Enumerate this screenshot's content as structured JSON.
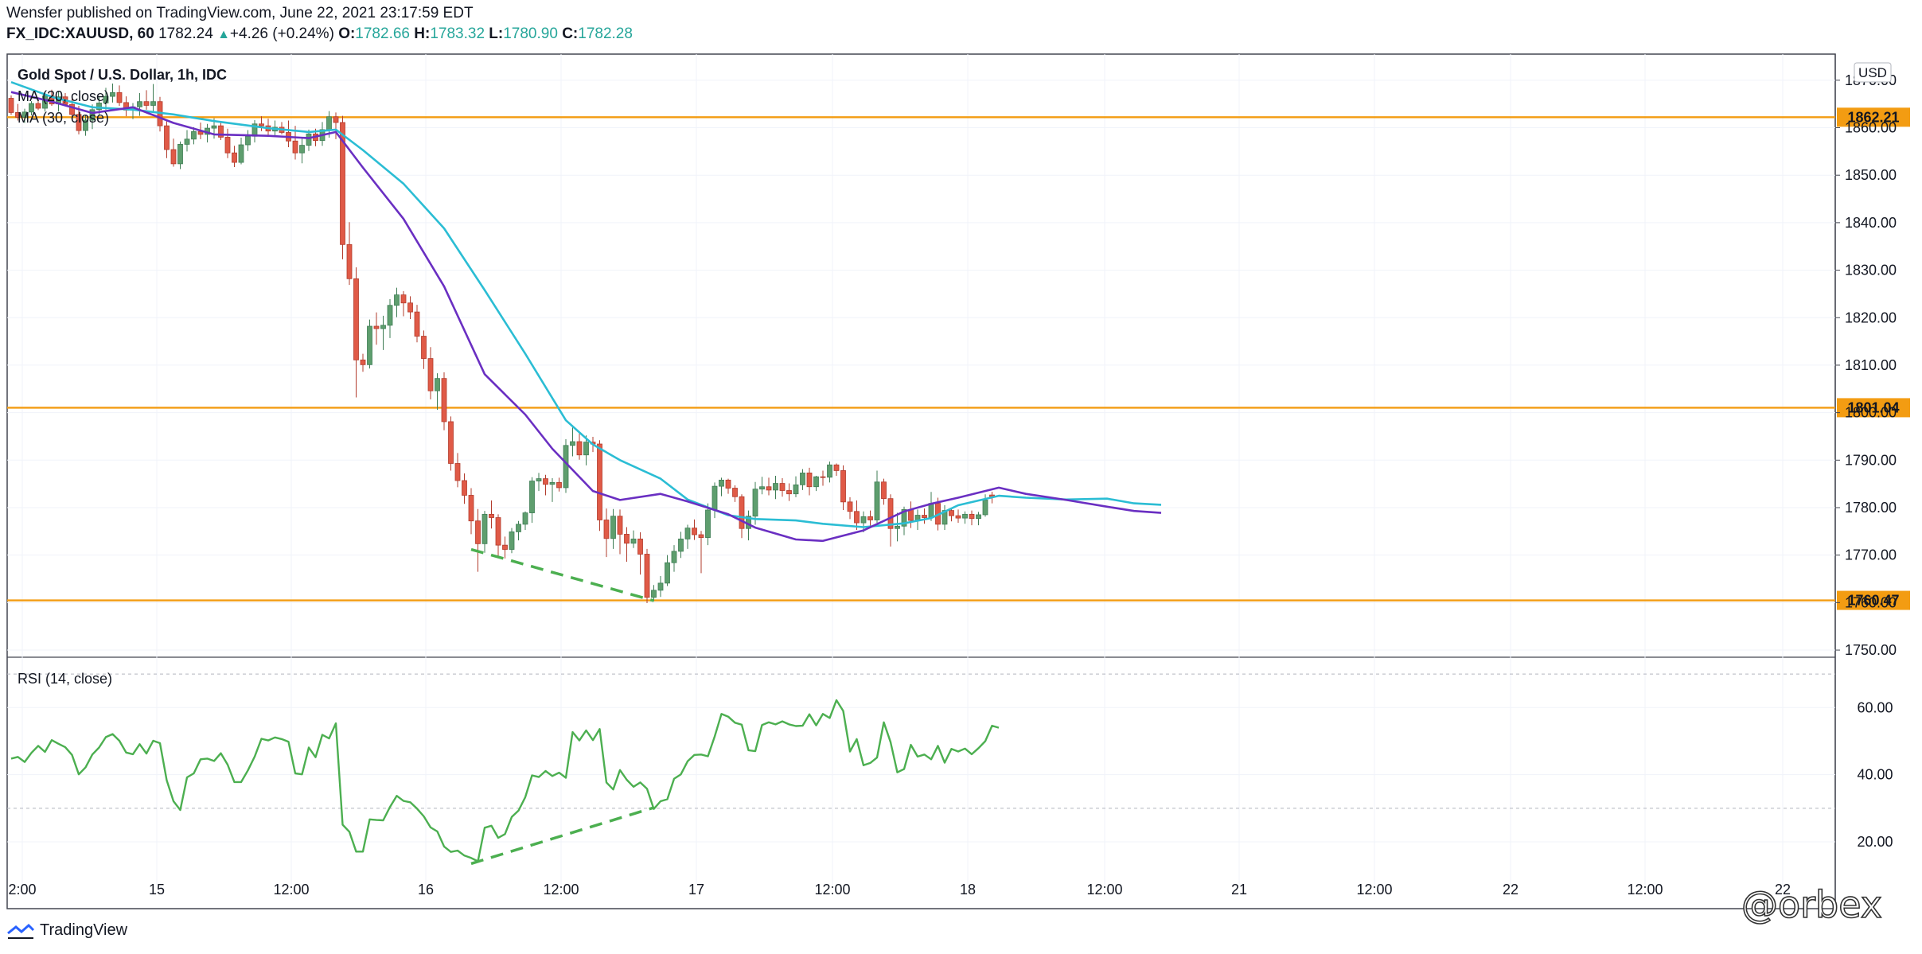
{
  "header": {
    "line1": "Wensfer published on TradingView.com, June 22, 2021 23:17:59 EDT",
    "symbol": "FX_IDC:XAUUSD, 60",
    "last": "1782.24",
    "change": "+4.26 (+0.24%)",
    "o_label": "O:",
    "o": "1782.66",
    "h_label": "H:",
    "h": "1783.32",
    "l_label": "L:",
    "l": "1780.90",
    "c_label": "C:",
    "c": "1782.28"
  },
  "legend": {
    "title": "Gold Spot / U.S. Dollar, 1h, IDC",
    "ma20": "MA (20, close)",
    "ma30": "MA (30, close)",
    "rsi": "RSI (14, close)"
  },
  "currency": "USD",
  "footer": {
    "brand": "TradingView"
  },
  "watermark": "@orbex",
  "colors": {
    "up": "#26a69a",
    "up_fill": "#5e9e6e",
    "down": "#e05a47",
    "ma20": "#6a2fc2",
    "ma30": "#2bbdd4",
    "level": "#f39c12",
    "rsi": "#4caf50",
    "divergence": "#4caf50",
    "grid": "#f0f3fa"
  },
  "chart_data": {
    "type": "candlestick",
    "price_ticks": [
      "1870.00",
      "1860.00",
      "1850.00",
      "1840.00",
      "1830.00",
      "1820.00",
      "1810.00",
      "1800.00",
      "1790.00",
      "1780.00",
      "1770.00",
      "1760.00",
      "1750.00"
    ],
    "price_range": [
      1748.5,
      1875.5
    ],
    "x_labels": [
      "2:00",
      "15",
      "12:00",
      "16",
      "12:00",
      "17",
      "12:00",
      "18",
      "12:00",
      "21",
      "12:00",
      "22",
      "12:00",
      "22"
    ],
    "levels": [
      "1862.21",
      "1801.04",
      "1760.47"
    ],
    "rsi_ticks": [
      "60.00",
      "40.00",
      "20.00"
    ],
    "rsi_range": [
      11,
      75
    ],
    "rsi_bands": [
      70,
      30
    ],
    "candles": [
      [
        1866.2,
        1866.8,
        1862.7,
        1863.2
      ],
      [
        1863.2,
        1865,
        1861.5,
        1862.2
      ],
      [
        1862.2,
        1864,
        1861,
        1863.3
      ],
      [
        1863.3,
        1865.6,
        1862.6,
        1865.1
      ],
      [
        1865.1,
        1866.4,
        1863.7,
        1864.1
      ],
      [
        1864.1,
        1867.6,
        1863.4,
        1866.7
      ],
      [
        1866.7,
        1868,
        1864.6,
        1865
      ],
      [
        1865,
        1867.7,
        1863.4,
        1866.5
      ],
      [
        1866.5,
        1867.3,
        1864.6,
        1864.9
      ],
      [
        1864.9,
        1866.2,
        1862.2,
        1862.8
      ],
      [
        1862.8,
        1864.6,
        1858.6,
        1859.4
      ],
      [
        1859.4,
        1862.7,
        1858.3,
        1861.6
      ],
      [
        1861.6,
        1864.9,
        1859.7,
        1863.8
      ],
      [
        1863.8,
        1866.4,
        1862.5,
        1865.2
      ],
      [
        1865.2,
        1868.4,
        1863.8,
        1866.6
      ],
      [
        1866.6,
        1869.3,
        1865.3,
        1867.4
      ],
      [
        1867.4,
        1868.9,
        1864.6,
        1865.3
      ],
      [
        1865.3,
        1866.6,
        1862.4,
        1863.7
      ],
      [
        1863.7,
        1865.2,
        1861.8,
        1864.4
      ],
      [
        1864.4,
        1867.3,
        1862.5,
        1865.5
      ],
      [
        1865.5,
        1867.9,
        1863.8,
        1864.7
      ],
      [
        1864.7,
        1869.2,
        1863.5,
        1865.5
      ],
      [
        1865.5,
        1866.5,
        1859.2,
        1860.4
      ],
      [
        1860.4,
        1861.6,
        1853.6,
        1855.4
      ],
      [
        1855.4,
        1857.7,
        1851.8,
        1852.4
      ],
      [
        1852.4,
        1857.1,
        1851.3,
        1856.5
      ],
      [
        1856.5,
        1859.5,
        1855,
        1857.6
      ],
      [
        1857.6,
        1860.1,
        1856.5,
        1859.2
      ],
      [
        1859.2,
        1861.1,
        1857.6,
        1858.6
      ],
      [
        1858.6,
        1860.8,
        1856.9,
        1859.9
      ],
      [
        1859.9,
        1862,
        1857.7,
        1860.4
      ],
      [
        1860.4,
        1861.3,
        1857.4,
        1858
      ],
      [
        1858,
        1859.8,
        1853.6,
        1854.7
      ],
      [
        1854.7,
        1856.2,
        1851.7,
        1852.7
      ],
      [
        1852.7,
        1857.9,
        1852.3,
        1856.4
      ],
      [
        1856.4,
        1859.5,
        1855.1,
        1858.2
      ],
      [
        1858.2,
        1861.6,
        1856.9,
        1860.8
      ],
      [
        1860.8,
        1862.4,
        1859.3,
        1860.4
      ],
      [
        1860.4,
        1861.9,
        1858.5,
        1859.3
      ],
      [
        1859.3,
        1861.5,
        1858.2,
        1860.1
      ],
      [
        1860.1,
        1861.2,
        1858.6,
        1859
      ],
      [
        1859,
        1861.5,
        1855.9,
        1857.2
      ],
      [
        1857.2,
        1860.4,
        1853.3,
        1854.7
      ],
      [
        1854.7,
        1857.8,
        1852.5,
        1856.3
      ],
      [
        1856.3,
        1859.6,
        1855.1,
        1858.7
      ],
      [
        1858.7,
        1859.8,
        1856.1,
        1857.3
      ],
      [
        1857.3,
        1861.2,
        1856.2,
        1859.6
      ],
      [
        1859.6,
        1863.5,
        1857.9,
        1862.3
      ],
      [
        1862.3,
        1863.2,
        1857.6,
        1861.1
      ],
      [
        1861.1,
        1862.5,
        1832.3,
        1835.4
      ],
      [
        1835.4,
        1840.1,
        1826.9,
        1828.2
      ],
      [
        1828.2,
        1830.6,
        1803.2,
        1811.1
      ],
      [
        1811.1,
        1812.4,
        1808.6,
        1810.1
      ],
      [
        1810.1,
        1819.6,
        1809.3,
        1818.2
      ],
      [
        1818.2,
        1821.1,
        1814.3,
        1817.7
      ],
      [
        1817.7,
        1820.4,
        1813.2,
        1818.4
      ],
      [
        1818.4,
        1823.9,
        1815.7,
        1822.6
      ],
      [
        1822.6,
        1826.3,
        1820.1,
        1824.8
      ],
      [
        1824.8,
        1825.6,
        1820.3,
        1823.1
      ],
      [
        1823.1,
        1824.5,
        1819.7,
        1821.2
      ],
      [
        1821.2,
        1822.7,
        1814.8,
        1816.1
      ],
      [
        1816.1,
        1817.3,
        1809.2,
        1811.4
      ],
      [
        1811.4,
        1813.8,
        1802.8,
        1804.6
      ],
      [
        1804.6,
        1808.3,
        1800.6,
        1807.2
      ],
      [
        1807.2,
        1808.5,
        1796.3,
        1798.1
      ],
      [
        1798.1,
        1799.2,
        1787.8,
        1789.3
      ],
      [
        1789.3,
        1791.5,
        1784.3,
        1785.7
      ],
      [
        1785.7,
        1787.2,
        1780.8,
        1782.6
      ],
      [
        1782.6,
        1784.1,
        1774.4,
        1777.2
      ],
      [
        1777.2,
        1779.7,
        1766.5,
        1772.4
      ],
      [
        1772.4,
        1779.3,
        1770.5,
        1778.6
      ],
      [
        1778.6,
        1781.5,
        1775.6,
        1777.9
      ],
      [
        1777.9,
        1778.6,
        1769.8,
        1772.1
      ],
      [
        1772.1,
        1773.9,
        1769.3,
        1771.2
      ],
      [
        1771.2,
        1775.7,
        1770.4,
        1774.9
      ],
      [
        1774.9,
        1777.2,
        1773.1,
        1776.5
      ],
      [
        1776.5,
        1779.2,
        1775.3,
        1778.9
      ],
      [
        1778.9,
        1786.4,
        1776.8,
        1785.6
      ],
      [
        1785.6,
        1787.3,
        1783.5,
        1786.1
      ],
      [
        1786.1,
        1786.9,
        1782.6,
        1784.9
      ],
      [
        1784.9,
        1786.2,
        1781.2,
        1785.3
      ],
      [
        1785.3,
        1786.3,
        1783.4,
        1784.2
      ],
      [
        1784.2,
        1794.4,
        1783.1,
        1793.1
      ],
      [
        1793.1,
        1796.9,
        1790.8,
        1793.9
      ],
      [
        1793.9,
        1795.6,
        1790.1,
        1791.1
      ],
      [
        1791.1,
        1795.2,
        1788.9,
        1793.8
      ],
      [
        1793.8,
        1794.9,
        1791.7,
        1793.4
      ],
      [
        1793.4,
        1794.2,
        1775.1,
        1777.4
      ],
      [
        1777.4,
        1779.8,
        1769.6,
        1773.5
      ],
      [
        1773.5,
        1779.7,
        1771.3,
        1778.2
      ],
      [
        1778.2,
        1779.6,
        1770.2,
        1774.4
      ],
      [
        1774.4,
        1775.9,
        1768.6,
        1772.5
      ],
      [
        1772.5,
        1775.2,
        1771.5,
        1773.4
      ],
      [
        1773.4,
        1774.8,
        1765.9,
        1770.2
      ],
      [
        1770.2,
        1771.3,
        1759.9,
        1761.1
      ],
      [
        1761.1,
        1763.7,
        1760.3,
        1762.6
      ],
      [
        1762.6,
        1765.6,
        1761.2,
        1764.1
      ],
      [
        1764.1,
        1770,
        1763.5,
        1768.4
      ],
      [
        1768.4,
        1772.1,
        1766.5,
        1770.8
      ],
      [
        1770.8,
        1774.9,
        1769.4,
        1773.4
      ],
      [
        1773.4,
        1776.4,
        1771.3,
        1775.7
      ],
      [
        1775.7,
        1777.5,
        1773.2,
        1774.3
      ],
      [
        1774.3,
        1775.1,
        1766.2,
        1773.7
      ],
      [
        1773.7,
        1780.9,
        1772.1,
        1779.5
      ],
      [
        1779.5,
        1785.3,
        1777.8,
        1784.5
      ],
      [
        1784.5,
        1786.3,
        1782.4,
        1785.8
      ],
      [
        1785.8,
        1786.1,
        1782.9,
        1784.1
      ],
      [
        1784.1,
        1784.7,
        1781.2,
        1782.3
      ],
      [
        1782.3,
        1782.8,
        1773.6,
        1775.6
      ],
      [
        1775.6,
        1779.4,
        1773.1,
        1778.2
      ],
      [
        1778.2,
        1785.4,
        1776.4,
        1783.9
      ],
      [
        1783.9,
        1786.5,
        1782.8,
        1784.4
      ],
      [
        1784.4,
        1786.3,
        1782.6,
        1783.7
      ],
      [
        1783.7,
        1786.7,
        1781.8,
        1785.1
      ],
      [
        1785.1,
        1786.2,
        1782.3,
        1783.6
      ],
      [
        1783.6,
        1785.1,
        1781.4,
        1782.9
      ],
      [
        1782.9,
        1786.6,
        1782.2,
        1784.8
      ],
      [
        1784.8,
        1788.1,
        1783.7,
        1787.3
      ],
      [
        1787.3,
        1788.4,
        1782.6,
        1784.4
      ],
      [
        1784.4,
        1786.7,
        1783.5,
        1786.5
      ],
      [
        1786.5,
        1787.8,
        1784.6,
        1786.4
      ],
      [
        1786.4,
        1789.7,
        1785.3,
        1789
      ],
      [
        1789,
        1789.3,
        1786.7,
        1787.8
      ],
      [
        1787.8,
        1788.9,
        1779.5,
        1781.2
      ],
      [
        1781.2,
        1782.2,
        1777.6,
        1779.2
      ],
      [
        1779.2,
        1781.5,
        1775.3,
        1776.8
      ],
      [
        1776.8,
        1779.2,
        1774.8,
        1778.1
      ],
      [
        1778.1,
        1779.4,
        1775.8,
        1777.4
      ],
      [
        1777.4,
        1787.8,
        1776.8,
        1785.4
      ],
      [
        1785.4,
        1786.1,
        1780.6,
        1781.9
      ],
      [
        1781.9,
        1782.8,
        1771.8,
        1775.6
      ],
      [
        1775.6,
        1778.9,
        1772.9,
        1776.1
      ],
      [
        1776.1,
        1780.2,
        1774.2,
        1779.6
      ],
      [
        1779.6,
        1781.3,
        1775.7,
        1777.3
      ],
      [
        1777.3,
        1779.6,
        1775.3,
        1778.4
      ],
      [
        1778.4,
        1779.8,
        1776.6,
        1777.9
      ],
      [
        1777.9,
        1783.3,
        1777.2,
        1780.9
      ],
      [
        1780.9,
        1782.1,
        1775.2,
        1776.5
      ],
      [
        1776.5,
        1780.5,
        1775.3,
        1779.4
      ],
      [
        1779.4,
        1779.7,
        1777.1,
        1778.3
      ],
      [
        1778.3,
        1779.6,
        1776.8,
        1777.8
      ],
      [
        1777.8,
        1779.2,
        1776.6,
        1778.6
      ],
      [
        1778.6,
        1779.4,
        1776.3,
        1777.7
      ],
      [
        1777.7,
        1779.1,
        1776.3,
        1778.5
      ],
      [
        1778.5,
        1782.8,
        1778.1,
        1781.6
      ],
      [
        1782.66,
        1783.32,
        1780.9,
        1782.28
      ]
    ],
    "ma20": [
      [
        0,
        1867.5
      ],
      [
        6,
        1865.5
      ],
      [
        12,
        1863.1
      ],
      [
        18,
        1864.3
      ],
      [
        24,
        1861
      ],
      [
        30,
        1858.6
      ],
      [
        38,
        1858.3
      ],
      [
        44,
        1857.8
      ],
      [
        48,
        1859.1
      ],
      [
        52,
        1851.6
      ],
      [
        58,
        1840.8
      ],
      [
        64,
        1826.6
      ],
      [
        70,
        1808.1
      ],
      [
        76,
        1799.6
      ],
      [
        80,
        1792.4
      ],
      [
        86,
        1783.5
      ],
      [
        90,
        1781.6
      ],
      [
        96,
        1782.9
      ],
      [
        100,
        1781.3
      ],
      [
        106,
        1778.6
      ],
      [
        110,
        1775.8
      ],
      [
        116,
        1773.3
      ],
      [
        120,
        1773
      ],
      [
        126,
        1775.2
      ],
      [
        132,
        1779.2
      ],
      [
        136,
        1780.8
      ],
      [
        140,
        1782.1
      ],
      [
        146,
        1784.2
      ],
      [
        150,
        1782.9
      ],
      [
        156,
        1781.6
      ],
      [
        162,
        1780.2
      ],
      [
        166,
        1779.3
      ],
      [
        170,
        1778.9
      ]
    ],
    "ma30": [
      [
        0,
        1869.6
      ],
      [
        6,
        1866.5
      ],
      [
        12,
        1864.3
      ],
      [
        18,
        1863.8
      ],
      [
        24,
        1862.8
      ],
      [
        30,
        1861.4
      ],
      [
        38,
        1859.9
      ],
      [
        44,
        1859.1
      ],
      [
        48,
        1859.6
      ],
      [
        52,
        1855.3
      ],
      [
        58,
        1848.2
      ],
      [
        64,
        1838.8
      ],
      [
        70,
        1825.8
      ],
      [
        76,
        1812.4
      ],
      [
        82,
        1798.4
      ],
      [
        86,
        1793.3
      ],
      [
        90,
        1790
      ],
      [
        96,
        1786.1
      ],
      [
        100,
        1781.7
      ],
      [
        106,
        1778.4
      ],
      [
        110,
        1777.6
      ],
      [
        116,
        1777.3
      ],
      [
        120,
        1776.6
      ],
      [
        126,
        1775.9
      ],
      [
        132,
        1776.7
      ],
      [
        136,
        1777.8
      ],
      [
        140,
        1780.5
      ],
      [
        146,
        1782.5
      ],
      [
        150,
        1782.1
      ],
      [
        156,
        1781.7
      ],
      [
        162,
        1781.9
      ],
      [
        166,
        1780.9
      ],
      [
        170,
        1780.6
      ]
    ],
    "rsi": [
      44.8,
      45.3,
      43.8,
      46.5,
      48.6,
      46.8,
      50.3,
      49.2,
      48.2,
      45.9,
      40.1,
      42.2,
      46,
      48.1,
      51.2,
      52.1,
      50.1,
      46.6,
      46.1,
      49.1,
      46.3,
      50.1,
      49.4,
      38.3,
      32.1,
      29.5,
      39.2,
      40.4,
      44.6,
      44.8,
      44.1,
      46.4,
      43,
      37.8,
      37.8,
      41.3,
      45.4,
      50.7,
      50.2,
      51.1,
      50.6,
      49.8,
      40.4,
      40.1,
      48.1,
      45.2,
      51.9,
      50.8,
      55.3,
      25.1,
      23,
      17.1,
      17.1,
      26.7,
      26.5,
      26.4,
      30.4,
      33.7,
      32.2,
      31.8,
      29.9,
      27.6,
      24.3,
      23.1,
      18.6,
      17,
      17.4,
      15.9,
      15.2,
      14.2,
      24.2,
      24.8,
      21.2,
      22.3,
      27.4,
      29.3,
      33.3,
      39.8,
      39.3,
      41.1,
      39.6,
      40.6,
      39.1,
      52.7,
      50.2,
      53.2,
      50.3,
      53.6,
      37.7,
      35.6,
      41.4,
      38.5,
      36.4,
      37.7,
      35.8,
      29.8,
      32.1,
      32.7,
      38.8,
      40.1,
      44,
      45.9,
      46,
      45.5,
      51.4,
      58.1,
      57.3,
      55.5,
      54.9,
      47.3,
      47,
      54.8,
      55.6,
      55,
      55.9,
      55,
      54.5,
      54.6,
      58,
      54.7,
      58.1,
      56.9,
      62.2,
      59,
      46.9,
      50.6,
      42.8,
      43.5,
      45.1,
      55.6,
      49.7,
      40.7,
      41.7,
      48.9,
      45.4,
      46,
      44.6,
      48.6,
      43.6,
      47.7,
      46.9,
      47.8,
      46.1,
      47.9,
      50,
      54.6,
      54
    ],
    "divergence_price": [
      [
        1771.2,
        68
      ],
      [
        1760.4,
        95
      ]
    ],
    "divergence_rsi": [
      [
        13.5,
        68
      ],
      [
        30.2,
        95
      ]
    ]
  }
}
